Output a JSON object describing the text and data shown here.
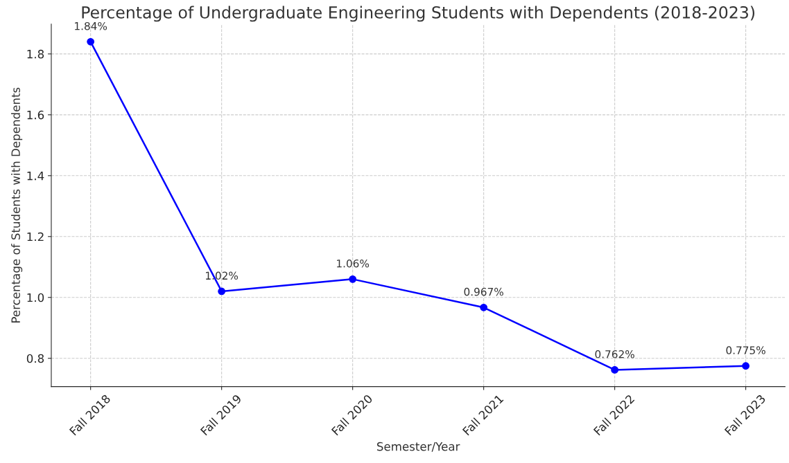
{
  "chart_data": {
    "type": "line",
    "title": "Percentage of Undergraduate Engineering Students with Dependents (2018-2023)",
    "xlabel": "Semester/Year",
    "ylabel": "Percentage of Students with Dependents",
    "categories": [
      "Fall 2018",
      "Fall 2019",
      "Fall 2020",
      "Fall 2021",
      "Fall 2022",
      "Fall 2023"
    ],
    "series": [
      {
        "color": "#0000ff",
        "values": [
          1.84,
          1.02,
          1.06,
          0.967,
          0.762,
          0.775
        ],
        "value_labels": [
          "1.84%",
          "1.02%",
          "1.06%",
          "0.967%",
          "0.762%",
          "0.775%"
        ]
      }
    ],
    "ylim": [
      0.707,
      1.898
    ],
    "yticks": [
      {
        "value": 0.8,
        "label": "0.8"
      },
      {
        "value": 1.0,
        "label": "1.0"
      },
      {
        "value": 1.2,
        "label": "1.2"
      },
      {
        "value": 1.4,
        "label": "1.4"
      },
      {
        "value": 1.6,
        "label": "1.6"
      },
      {
        "value": 1.8,
        "label": "1.8"
      }
    ],
    "grid": true,
    "marker": "circle",
    "line_style": "solid"
  }
}
